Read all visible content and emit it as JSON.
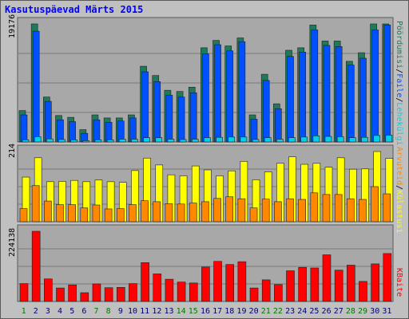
{
  "title": "Kasutuspäevad Märts 2015",
  "colors": {
    "background": "#c0c0c0",
    "panel": "#a8a8a8",
    "grid": "#7a7a7a",
    "pages": "#1e7b5a",
    "files": "#0050ff",
    "visits": "#00d0e8",
    "hosts": "#ffff00",
    "kvisits": "#ff8800",
    "kbytes": "#ff0000",
    "weekday_label": "#00006e",
    "weekend_label": "#007800"
  },
  "right_legends": {
    "top": [
      {
        "text": "Pöördumisi",
        "color": "#1e7b5a"
      },
      {
        "text": "/",
        "color": "#000000"
      },
      {
        "text": "Faile",
        "color": "#0050ff"
      },
      {
        "text": "/",
        "color": "#000000"
      },
      {
        "text": "Lehekülgi",
        "color": "#00d0e8"
      }
    ],
    "middle": [
      {
        "text": "Arvuteid",
        "color": "#ff8800"
      },
      {
        "text": "/",
        "color": "#000000"
      },
      {
        "text": "Külastusi",
        "color": "#ffff00"
      }
    ],
    "bottom": [
      {
        "text": "KBaite",
        "color": "#ff0000"
      }
    ]
  },
  "chart_data": [
    {
      "type": "bar",
      "panel": "top",
      "ymax_label": "19176",
      "ylim": [
        0,
        19176
      ],
      "categories": [
        "1",
        "2",
        "3",
        "4",
        "5",
        "6",
        "7",
        "8",
        "9",
        "10",
        "11",
        "12",
        "13",
        "14",
        "15",
        "16",
        "17",
        "18",
        "19",
        "20",
        "21",
        "22",
        "23",
        "24",
        "25",
        "26",
        "27",
        "28",
        "29",
        "30",
        "31"
      ],
      "weekend_days": [
        "1",
        "7",
        "8",
        "14",
        "15",
        "21",
        "22",
        "28",
        "29"
      ],
      "series": [
        {
          "name": "Pöördumisi",
          "values": [
            5100,
            19176,
            7300,
            4300,
            4000,
            2000,
            4400,
            3900,
            3900,
            4400,
            12300,
            10800,
            8400,
            8200,
            8900,
            15300,
            16500,
            15600,
            16900,
            4400,
            11000,
            6200,
            14900,
            15300,
            19000,
            16400,
            16400,
            13100,
            14500,
            19176,
            19176
          ]
        },
        {
          "name": "Faile",
          "values": [
            4400,
            18000,
            6600,
            3600,
            3300,
            1400,
            3600,
            3200,
            3400,
            3900,
            11400,
            9800,
            7600,
            7300,
            8000,
            14300,
            15800,
            14800,
            16300,
            3700,
            10000,
            5400,
            13900,
            14600,
            18200,
            15700,
            15500,
            12500,
            13600,
            18200,
            19000
          ]
        },
        {
          "name": "Lehekülgi",
          "values": [
            350,
            850,
            500,
            400,
            350,
            200,
            350,
            350,
            450,
            450,
            700,
            700,
            450,
            400,
            450,
            700,
            750,
            800,
            800,
            400,
            700,
            450,
            700,
            800,
            1000,
            900,
            850,
            700,
            750,
            1050,
            1100
          ]
        }
      ]
    },
    {
      "type": "bar",
      "panel": "middle",
      "ymax_label": "214",
      "ylim": [
        0,
        214
      ],
      "series": [
        {
          "name": "Külastusi",
          "values": [
            136,
            195,
            122,
            123,
            126,
            122,
            127,
            122,
            120,
            156,
            194,
            173,
            143,
            140,
            170,
            158,
            140,
            155,
            184,
            128,
            152,
            178,
            198,
            175,
            178,
            166,
            195,
            160,
            161,
            214,
            193
          ]
        },
        {
          "name": "Arvuteid",
          "values": [
            40,
            110,
            63,
            52,
            52,
            42,
            51,
            39,
            40,
            52,
            64,
            61,
            55,
            54,
            57,
            61,
            71,
            76,
            70,
            42,
            69,
            61,
            70,
            68,
            88,
            83,
            83,
            70,
            68,
            107,
            85
          ]
        }
      ]
    },
    {
      "type": "bar",
      "panel": "bottom",
      "ymax_label": "224138",
      "ylim": [
        0,
        224138
      ],
      "series": [
        {
          "name": "KBaite",
          "values": [
            57000,
            224138,
            72000,
            43000,
            53000,
            28000,
            56000,
            44000,
            45000,
            57000,
            124000,
            88000,
            71000,
            62000,
            59000,
            110000,
            128000,
            118000,
            127000,
            43000,
            69000,
            54000,
            98000,
            109000,
            107000,
            149000,
            100000,
            116000,
            64000,
            120000,
            153000
          ]
        }
      ]
    }
  ]
}
